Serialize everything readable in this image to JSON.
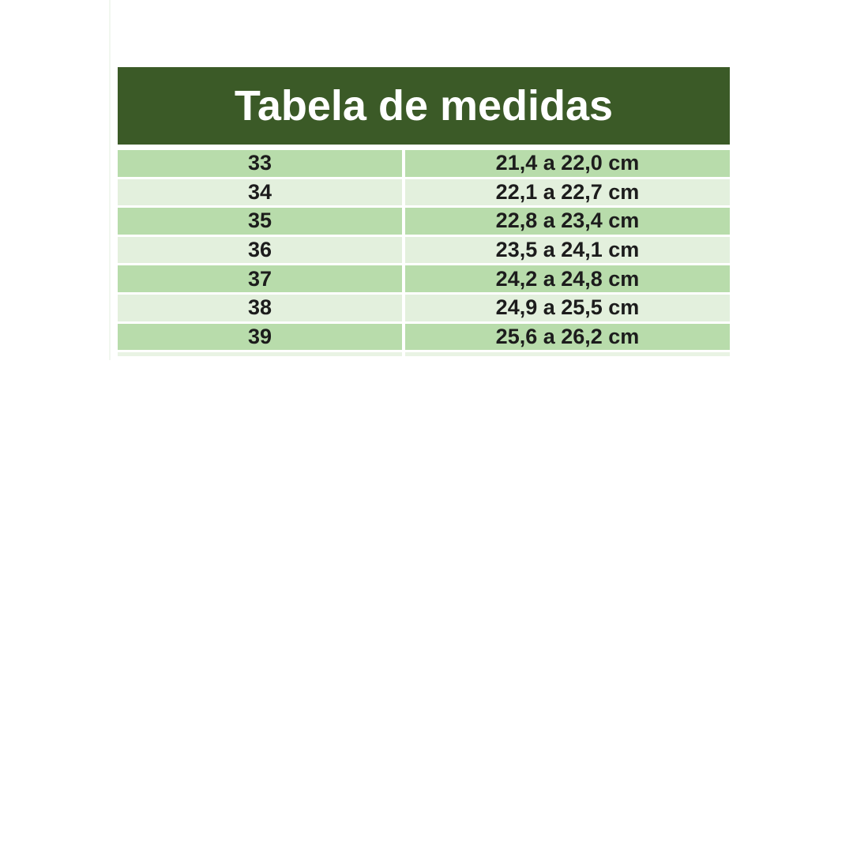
{
  "chart_data": {
    "type": "table",
    "title": "Tabela de medidas",
    "rows": [
      [
        "33",
        "21,4 a 22,0 cm"
      ],
      [
        "34",
        "22,1 a 22,7 cm"
      ],
      [
        "35",
        "22,8 a 23,4 cm"
      ],
      [
        "36",
        "23,5 a 24,1 cm"
      ],
      [
        "37",
        "24,2 a 24,8 cm"
      ],
      [
        "38",
        "24,9 a 25,5 cm"
      ],
      [
        "39",
        "25,6 a 26,2 cm"
      ]
    ],
    "layout_hints": {
      "header_position": "top",
      "row_striping": "first-row-dark, alternating",
      "columns": 2,
      "gridlines": "white gaps between cells"
    }
  },
  "colors": {
    "page_background": "#ffffff",
    "header_bg": "#3b5a27",
    "header_text": "#ffffff",
    "row_green": "#b8dcab",
    "row_light": "#e3f0dd",
    "cell_text": "#1c1c1c",
    "partial_row": "#e9f3e4",
    "edge_artifact": "#f1f7ef"
  }
}
